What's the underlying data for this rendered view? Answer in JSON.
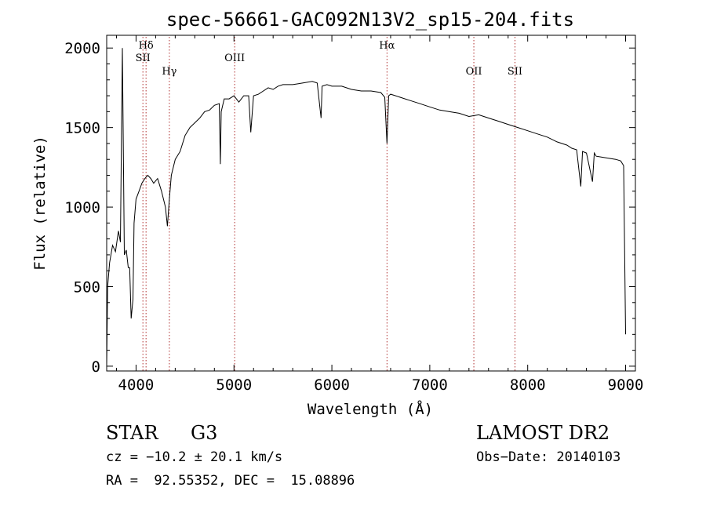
{
  "chart_data": {
    "type": "line",
    "title": "spec-56661-GAC092N13V2_sp15-204.fits",
    "xlabel": "Wavelength (Å)",
    "ylabel": "Flux (relative)",
    "xlim": [
      3700,
      9100
    ],
    "ylim": [
      -30,
      2080
    ],
    "xticks": [
      4000,
      5000,
      6000,
      7000,
      8000,
      9000
    ],
    "yticks": [
      0,
      500,
      1000,
      1500,
      2000
    ],
    "grid": false,
    "line_markers": [
      {
        "label": "Hδ",
        "x": 4102,
        "row": 1
      },
      {
        "label": "SII",
        "x": 4070,
        "row": 2
      },
      {
        "label": "Hγ",
        "x": 4340,
        "row": 3
      },
      {
        "label": "OIII",
        "x": 5007,
        "row": 2
      },
      {
        "label": "Hα",
        "x": 6563,
        "row": 1
      },
      {
        "label": "OII",
        "x": 7450,
        "row": 3
      },
      {
        "label": "SII",
        "x": 7870,
        "row": 3
      }
    ],
    "series": [
      {
        "x": [
          3700,
          3710,
          3730,
          3760,
          3790,
          3820,
          3840,
          3860,
          3880,
          3900,
          3920,
          3935,
          3950,
          3968,
          3980,
          4000,
          4030,
          4060,
          4090,
          4120,
          4150,
          4180,
          4220,
          4260,
          4300,
          4320,
          4340,
          4360,
          4400,
          4450,
          4500,
          4550,
          4600,
          4650,
          4700,
          4750,
          4800,
          4850,
          4861,
          4870,
          4900,
          4950,
          5000,
          5050,
          5100,
          5150,
          5172,
          5200,
          5250,
          5300,
          5350,
          5400,
          5450,
          5500,
          5600,
          5700,
          5800,
          5850,
          5890,
          5900,
          5950,
          6000,
          6100,
          6200,
          6300,
          6400,
          6500,
          6540,
          6563,
          6580,
          6600,
          6700,
          6800,
          6900,
          7000,
          7100,
          7200,
          7300,
          7400,
          7500,
          7600,
          7700,
          7800,
          7900,
          8000,
          8100,
          8200,
          8300,
          8400,
          8450,
          8500,
          8542,
          8560,
          8600,
          8662,
          8680,
          8700,
          8800,
          8900,
          8950,
          8980,
          9000
        ],
        "y": [
          0,
          500,
          650,
          760,
          720,
          850,
          780,
          2000,
          700,
          730,
          620,
          620,
          300,
          420,
          900,
          1050,
          1100,
          1150,
          1180,
          1200,
          1180,
          1150,
          1180,
          1100,
          1000,
          880,
          1050,
          1200,
          1300,
          1350,
          1450,
          1500,
          1530,
          1560,
          1600,
          1610,
          1640,
          1650,
          1270,
          1600,
          1680,
          1680,
          1700,
          1660,
          1700,
          1700,
          1470,
          1700,
          1710,
          1730,
          1750,
          1740,
          1760,
          1770,
          1770,
          1780,
          1790,
          1780,
          1560,
          1760,
          1770,
          1760,
          1760,
          1740,
          1730,
          1730,
          1720,
          1690,
          1400,
          1700,
          1710,
          1690,
          1670,
          1650,
          1630,
          1610,
          1600,
          1590,
          1570,
          1580,
          1560,
          1540,
          1520,
          1500,
          1480,
          1460,
          1440,
          1410,
          1390,
          1370,
          1360,
          1130,
          1350,
          1340,
          1160,
          1340,
          1320,
          1310,
          1300,
          1290,
          1260,
          200
        ]
      }
    ]
  },
  "info": {
    "object_class": "STAR",
    "subclass": "G3",
    "survey": "LAMOST DR2",
    "redshift": "cz = −10.2 ± 20.1 km/s",
    "obs_date": "Obs−Date: 20140103",
    "coords": "RA =  92.55352, DEC =  15.08896"
  }
}
